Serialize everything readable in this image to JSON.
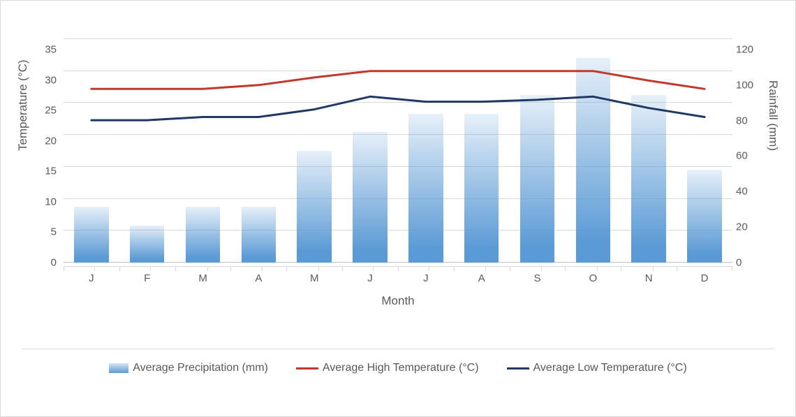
{
  "chart": {
    "type": "bar+line",
    "background_color": "#ffffff",
    "border_color": "#d9d9d9",
    "grid_color": "#d9d9d9",
    "axis_zero_color": "#bfbfbf",
    "text_color": "#595959",
    "font_family": "Segoe UI",
    "axis_fontsize": 15,
    "label_fontsize": 17,
    "legend_fontsize": 16,
    "months": [
      "J",
      "F",
      "M",
      "A",
      "M",
      "J",
      "J",
      "A",
      "S",
      "O",
      "N",
      "D"
    ],
    "x_title": "Month",
    "left_axis": {
      "title": "Temperature (°C)",
      "min": 0,
      "max": 35,
      "step": 5
    },
    "right_axis": {
      "title": "Rainfall (mm)",
      "min": 0,
      "max": 120,
      "step": 20
    },
    "series": {
      "precipitation": {
        "label": "Average Precipitation (mm)",
        "axis": "right",
        "type": "bar",
        "color_top": "rgba(91,155,213,0.15)",
        "color_bottom": "#5b9bd5",
        "bar_width_fraction": 0.62,
        "values": [
          30,
          20,
          30,
          30,
          60,
          70,
          80,
          80,
          90,
          110,
          90,
          50
        ]
      },
      "high_temp": {
        "label": "Average High Temperature (°C)",
        "axis": "left",
        "type": "line",
        "color": "#c0392b",
        "line_width": 3,
        "values": [
          27.2,
          27.2,
          27.2,
          27.8,
          29,
          30,
          30,
          30,
          30,
          30,
          28.5,
          27.2
        ]
      },
      "low_temp": {
        "label": "Average Low Temperature (°C)",
        "axis": "left",
        "type": "line",
        "color": "#1f3864",
        "line_width": 3,
        "values": [
          22.3,
          22.3,
          22.8,
          22.8,
          24,
          26,
          25.2,
          25.2,
          25.5,
          26,
          24.2,
          22.8
        ]
      }
    }
  }
}
